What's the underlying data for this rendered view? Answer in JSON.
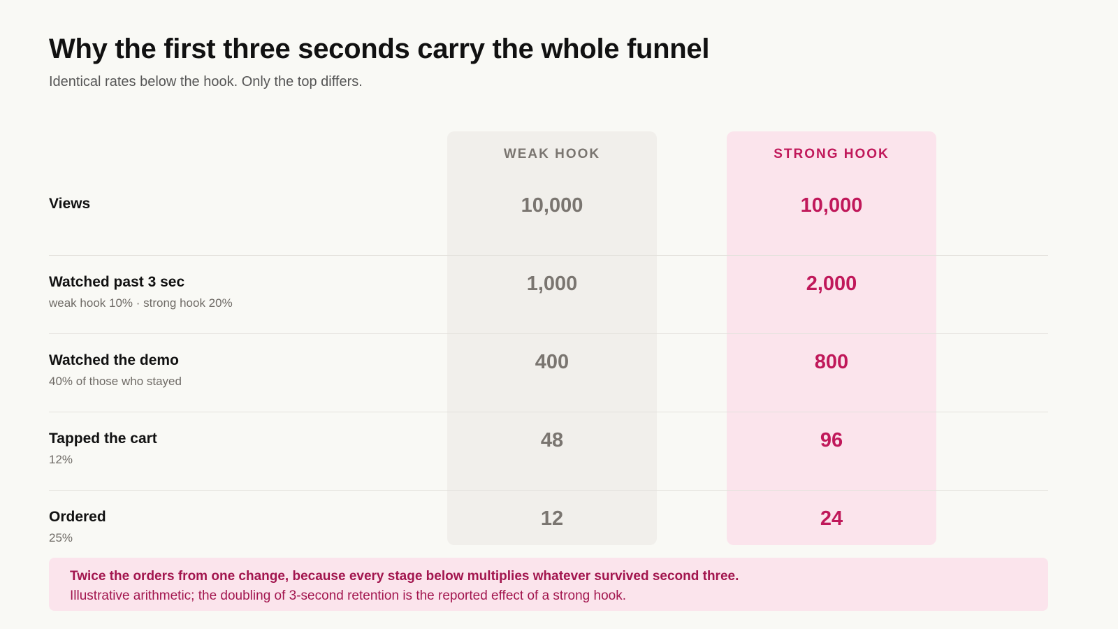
{
  "header": {
    "title": "Why the first three seconds carry the whole funnel",
    "subtitle": "Identical rates below the hook. Only the top differs."
  },
  "columns": {
    "weak": "WEAK HOOK",
    "strong": "STRONG HOOK"
  },
  "rows": [
    {
      "label": "Views",
      "note": "",
      "weak": "10,000",
      "strong": "10,000"
    },
    {
      "label": "Watched past 3 sec",
      "note": "weak hook 10% · strong hook 20%",
      "weak": "1,000",
      "strong": "2,000"
    },
    {
      "label": "Watched the demo",
      "note": "40% of those who stayed",
      "weak": "400",
      "strong": "800"
    },
    {
      "label": "Tapped the cart",
      "note": "12%",
      "weak": "48",
      "strong": "96"
    },
    {
      "label": "Ordered",
      "note": "25%",
      "weak": "12",
      "strong": "24"
    }
  ],
  "callout": {
    "main": "Twice the orders from one change, because every stage below multiplies whatever survived second three.",
    "sub": "Illustrative arithmetic; the doubling of 3-second retention is the reported effect of a strong hook."
  },
  "colors": {
    "accent": "#c0185a",
    "weak_text": "#7a7570",
    "weak_bg": "#f1efeb",
    "strong_bg": "#fbe4ec"
  }
}
